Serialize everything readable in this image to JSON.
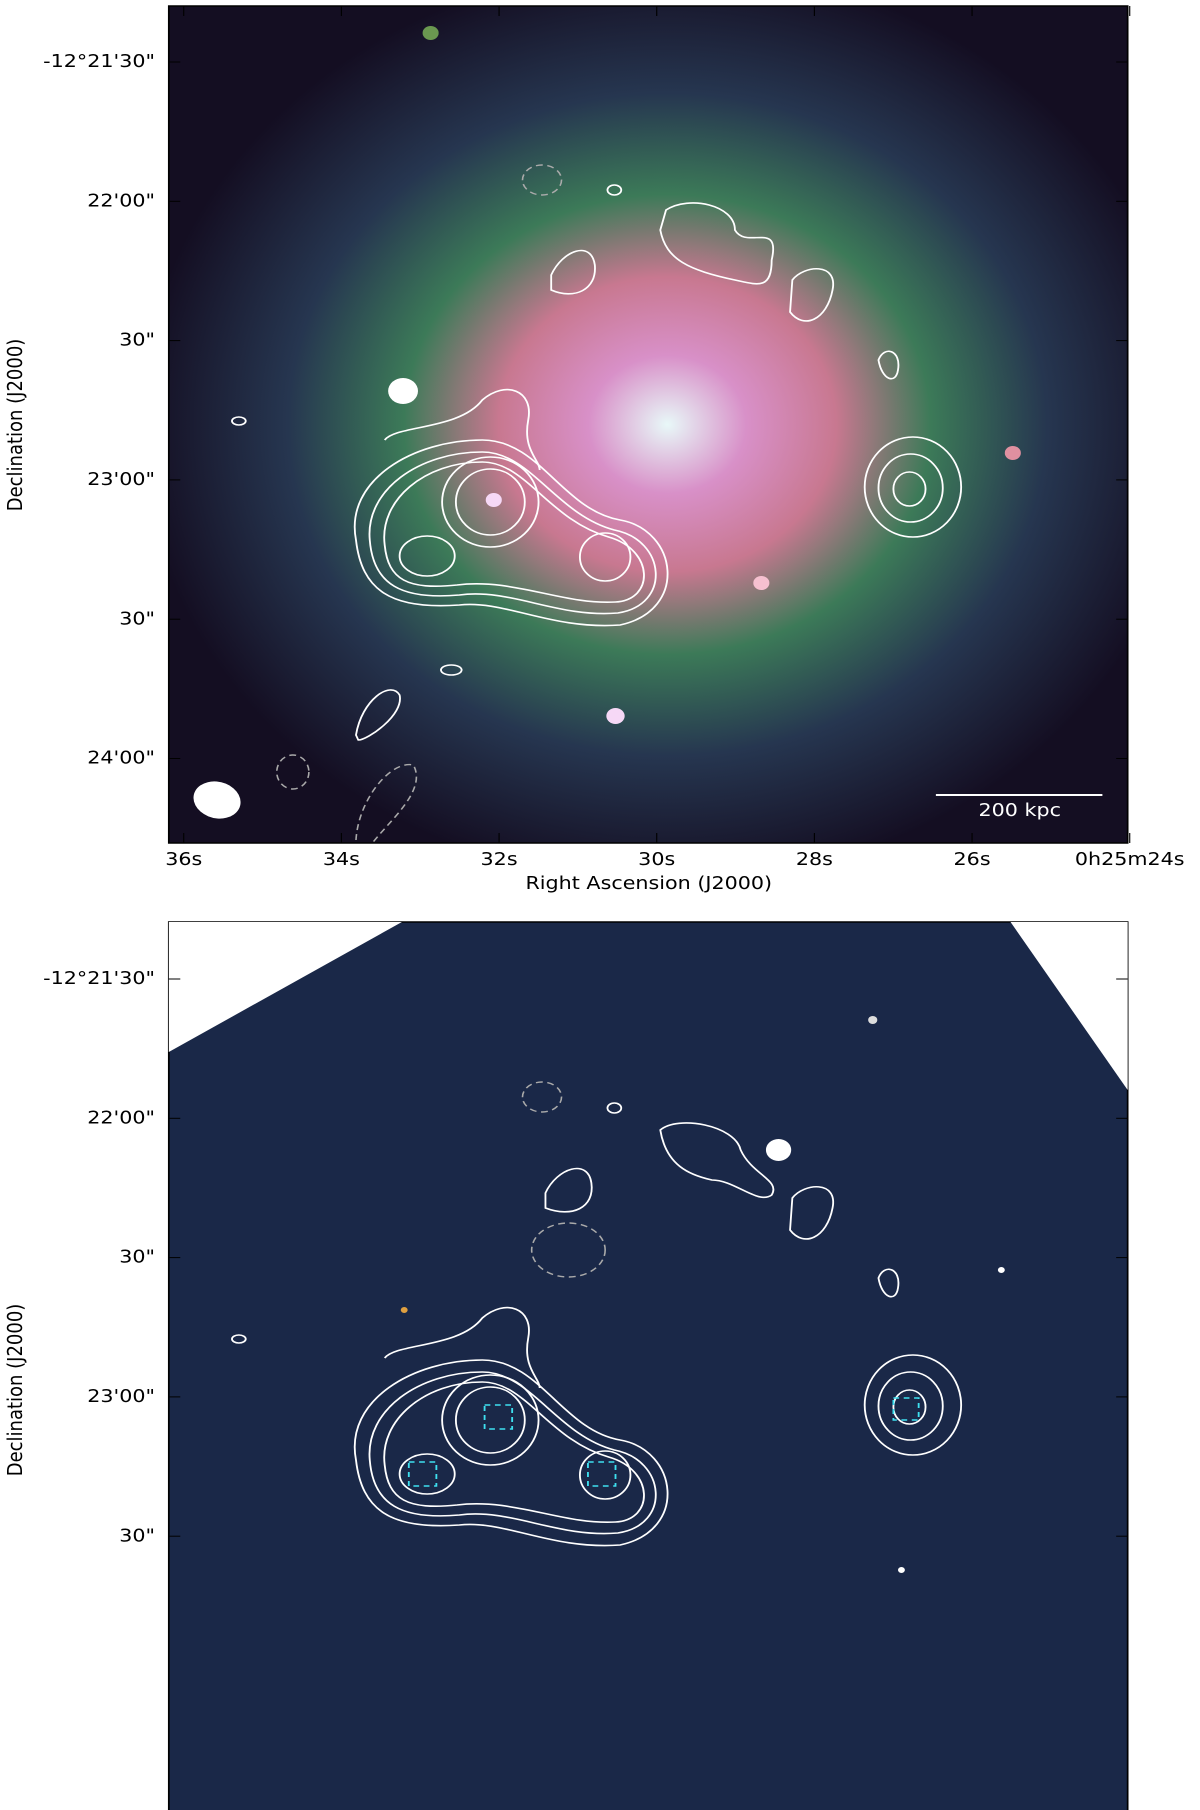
{
  "panels": [
    {
      "y_label": "Declination (J2000)",
      "x_label": "Right Ascension (J2000)",
      "y_ticks": [
        "-12°21'30\"",
        "22'00\"",
        "30\"",
        "23'00\"",
        "30\"",
        "24'00\""
      ],
      "x_ticks": [
        "36s",
        "34s",
        "32s",
        "30s",
        "28s",
        "26s",
        "0h25m24s"
      ],
      "scale_bar": "200 kpc"
    },
    {
      "y_label": "Declination (J2000)",
      "y_ticks": [
        "-12°21'30\"",
        "22'00\"",
        "30\"",
        "23'00\"",
        "30\""
      ]
    }
  ]
}
